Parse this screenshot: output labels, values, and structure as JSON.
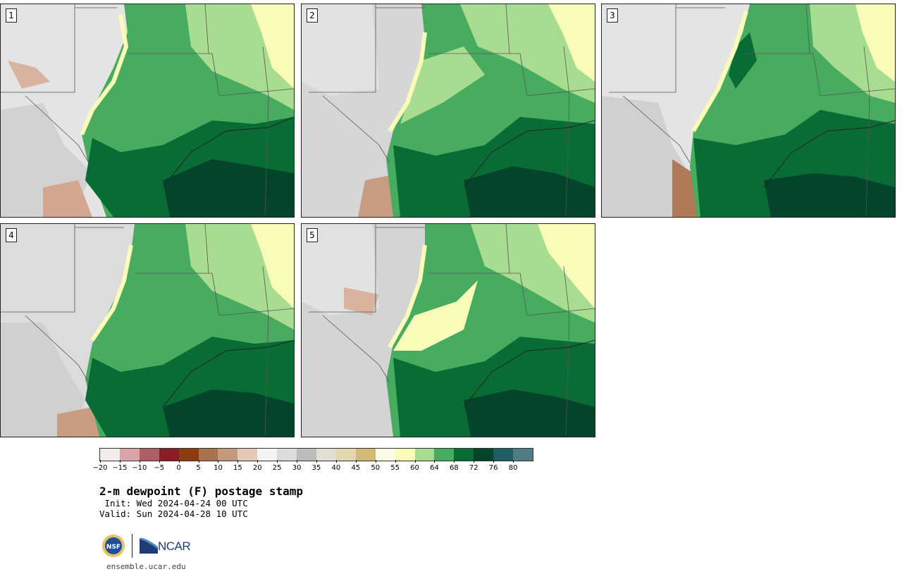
{
  "panels": [
    {
      "label": "1"
    },
    {
      "label": "2"
    },
    {
      "label": "3"
    },
    {
      "label": "4"
    },
    {
      "label": "5"
    }
  ],
  "colorbar": {
    "colors": [
      "#f4ecec",
      "#d8a4a8",
      "#b05e66",
      "#8c1c28",
      "#8c3c10",
      "#a87250",
      "#c49a7c",
      "#e4c8b8",
      "#f4f4f4",
      "#dcdcdc",
      "#bcbcbc",
      "#e2e0d4",
      "#e4d6b0",
      "#d4b878",
      "#fcfce4",
      "#f8fcb8",
      "#a8dc90",
      "#48ac60",
      "#086c34",
      "#04442c",
      "#205c64",
      "#507c84"
    ],
    "tick_labels": [
      "−20",
      "−15",
      "−10",
      "−5",
      "0",
      "5",
      "10",
      "15",
      "20",
      "25",
      "30",
      "35",
      "40",
      "45",
      "50",
      "55",
      "60",
      "64",
      "68",
      "72",
      "76",
      "80"
    ]
  },
  "title": "2-m dewpoint (F) postage stamp",
  "init": " Init: Wed 2024-04-24 00 UTC",
  "valid": "Valid: Sun 2024-04-28 10 UTC",
  "logos": {
    "nsf": "NSF",
    "ncar": "NCAR",
    "nsf_icon": "nsf-seal",
    "ncar_icon": "ncar-swoosh"
  },
  "site": "ensemble.ucar.edu"
}
